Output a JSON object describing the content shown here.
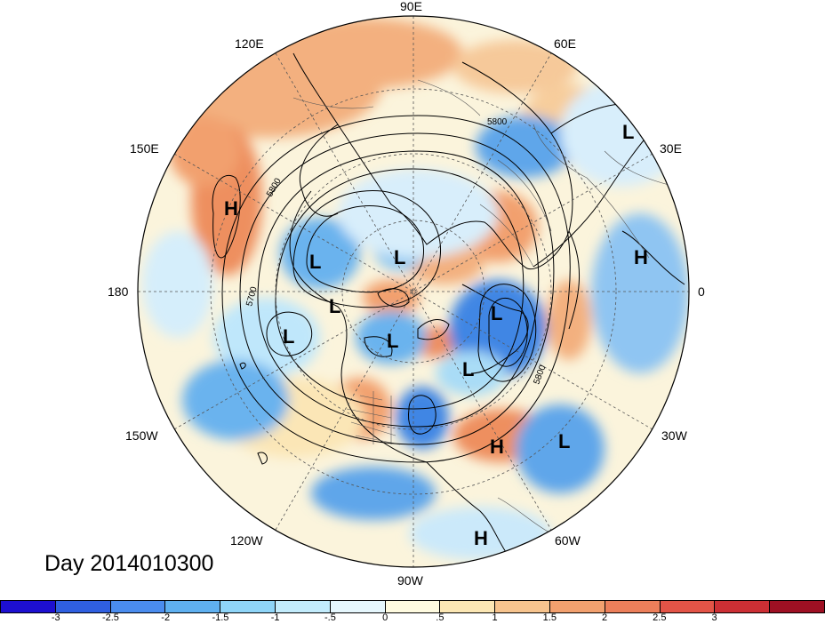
{
  "title": "Day 2014010300",
  "longitude_labels": {
    "lon_90E": "90E",
    "lon_60E": "60E",
    "lon_120E": "120E",
    "lon_150E": "150E",
    "lon_30E": "30E",
    "lon_180": "180",
    "lon_0": "0",
    "lon_150W": "150W",
    "lon_30W": "30W",
    "lon_120W": "120W",
    "lon_60W": "60W",
    "lon_90W": "90W"
  },
  "contour_labels": [
    "5800",
    "5800",
    "5700",
    "5800"
  ],
  "pressure_systems": [
    {
      "label": "H",
      "region": "North Pacific"
    },
    {
      "label": "L",
      "region": "Arctic Russia"
    },
    {
      "label": "L",
      "region": "Alaska"
    },
    {
      "label": "L",
      "region": "Yukon"
    },
    {
      "label": "L",
      "region": "Eastern Siberia"
    },
    {
      "label": "L",
      "region": "Gulf of Alaska"
    },
    {
      "label": "L",
      "region": "Canadian Arctic"
    },
    {
      "label": "L",
      "region": "Baffin Bay"
    },
    {
      "label": "L",
      "region": "Labrador"
    },
    {
      "label": "H",
      "region": "Europe"
    },
    {
      "label": "H",
      "region": "Central Atlantic"
    },
    {
      "label": "L",
      "region": "Eastern Atlantic"
    },
    {
      "label": "H",
      "region": "South America"
    }
  ],
  "colorbar": {
    "colors": [
      "#1d0fd0",
      "#2f5fe0",
      "#4a8cee",
      "#5fb0f0",
      "#8fd5f8",
      "#c3ecfc",
      "#e6f7fd",
      "#fffbe0",
      "#fce7b4",
      "#f7c48e",
      "#f2a06e",
      "#ec7f5a",
      "#e35447",
      "#cc2f34",
      "#9e1023"
    ],
    "ticks": [
      "-3",
      "-2.5",
      "-2",
      "-1.5",
      "-1",
      "-.5",
      "0",
      ".5",
      "1",
      "1.5",
      "2",
      "2.5",
      "3"
    ]
  }
}
